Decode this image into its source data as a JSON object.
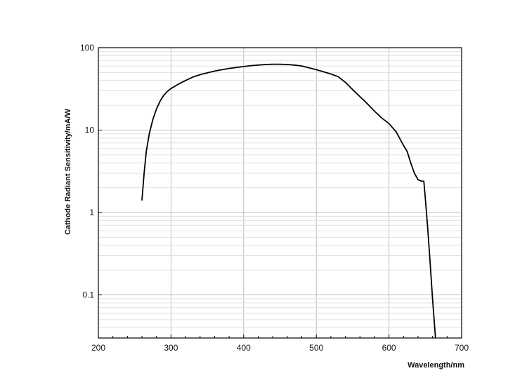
{
  "chart_data": {
    "type": "line",
    "xlabel": "Wavelength/nm",
    "ylabel": "Cathode Radiant Sensitivity/mA/W",
    "xscale": "linear",
    "yscale": "log",
    "xlim": [
      200,
      700
    ],
    "ylim": [
      0.03,
      100
    ],
    "grid": true,
    "x_ticks": [
      200,
      300,
      400,
      500,
      600,
      700
    ],
    "x_tick_labels": [
      "200",
      "300",
      "400",
      "500",
      "600",
      "700"
    ],
    "y_ticks": [
      0.1,
      1,
      10,
      100
    ],
    "y_tick_labels": [
      "0.1",
      "1",
      "10",
      "100"
    ],
    "series": [
      {
        "color": "#000000",
        "points": [
          [
            260,
            1.4
          ],
          [
            263,
            3.0
          ],
          [
            266,
            5.5
          ],
          [
            270,
            9.0
          ],
          [
            275,
            13.5
          ],
          [
            280,
            18.0
          ],
          [
            285,
            22.5
          ],
          [
            290,
            26.5
          ],
          [
            295,
            29.5
          ],
          [
            300,
            32.0
          ],
          [
            310,
            36.0
          ],
          [
            320,
            40.0
          ],
          [
            330,
            44.0
          ],
          [
            340,
            47.0
          ],
          [
            350,
            49.5
          ],
          [
            360,
            52.0
          ],
          [
            370,
            54.0
          ],
          [
            380,
            56.0
          ],
          [
            390,
            57.5
          ],
          [
            400,
            59.0
          ],
          [
            410,
            60.5
          ],
          [
            420,
            61.5
          ],
          [
            430,
            62.5
          ],
          [
            440,
            63.0
          ],
          [
            450,
            63.0
          ],
          [
            460,
            62.5
          ],
          [
            470,
            61.5
          ],
          [
            480,
            60.0
          ],
          [
            490,
            57.0
          ],
          [
            500,
            54.0
          ],
          [
            510,
            51.0
          ],
          [
            520,
            48.0
          ],
          [
            530,
            44.5
          ],
          [
            540,
            38.0
          ],
          [
            550,
            31.0
          ],
          [
            560,
            25.5
          ],
          [
            570,
            21.0
          ],
          [
            580,
            17.0
          ],
          [
            590,
            14.0
          ],
          [
            600,
            12.0
          ],
          [
            610,
            9.5
          ],
          [
            620,
            6.5
          ],
          [
            625,
            5.5
          ],
          [
            630,
            4.0
          ],
          [
            635,
            3.0
          ],
          [
            640,
            2.5
          ],
          [
            645,
            2.4
          ],
          [
            648,
            2.4
          ],
          [
            650,
            1.5
          ],
          [
            653,
            0.7
          ],
          [
            656,
            0.3
          ],
          [
            660,
            0.09
          ],
          [
            664,
            0.03
          ]
        ]
      }
    ]
  }
}
